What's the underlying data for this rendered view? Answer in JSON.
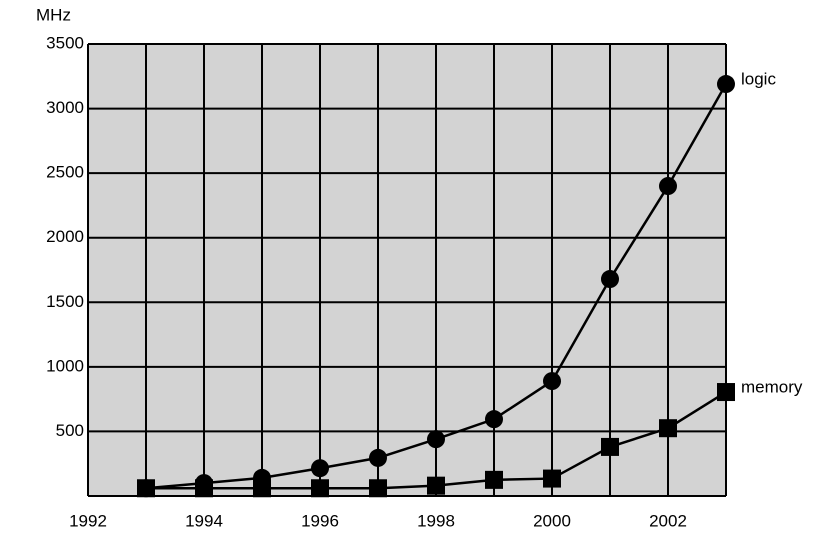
{
  "chart_data": {
    "type": "line",
    "y_label": "MHz",
    "x": [
      1993,
      1994,
      1995,
      1996,
      1997,
      1998,
      1999,
      2000,
      2001,
      2002,
      2003
    ],
    "series": [
      {
        "name": "logic",
        "color": "#000000",
        "marker": "circle",
        "values": [
          60,
          100,
          140,
          215,
          295,
          440,
          595,
          890,
          1680,
          2400,
          3190
        ]
      },
      {
        "name": "memory",
        "color": "#000000",
        "marker": "square",
        "values": [
          60,
          60,
          60,
          60,
          60,
          80,
          125,
          135,
          380,
          525,
          805
        ]
      }
    ],
    "xlim": [
      1992,
      2003
    ],
    "xticks": [
      1992,
      1994,
      1996,
      1998,
      2000,
      2002
    ],
    "minor_xticks": [
      1993,
      1995,
      1997,
      1999,
      2001,
      2003
    ],
    "ylim": [
      0,
      3500
    ],
    "yticks": [
      500,
      1000,
      1500,
      2000,
      2500,
      3000,
      3500
    ],
    "grid": true,
    "background": "#d3d3d3"
  }
}
